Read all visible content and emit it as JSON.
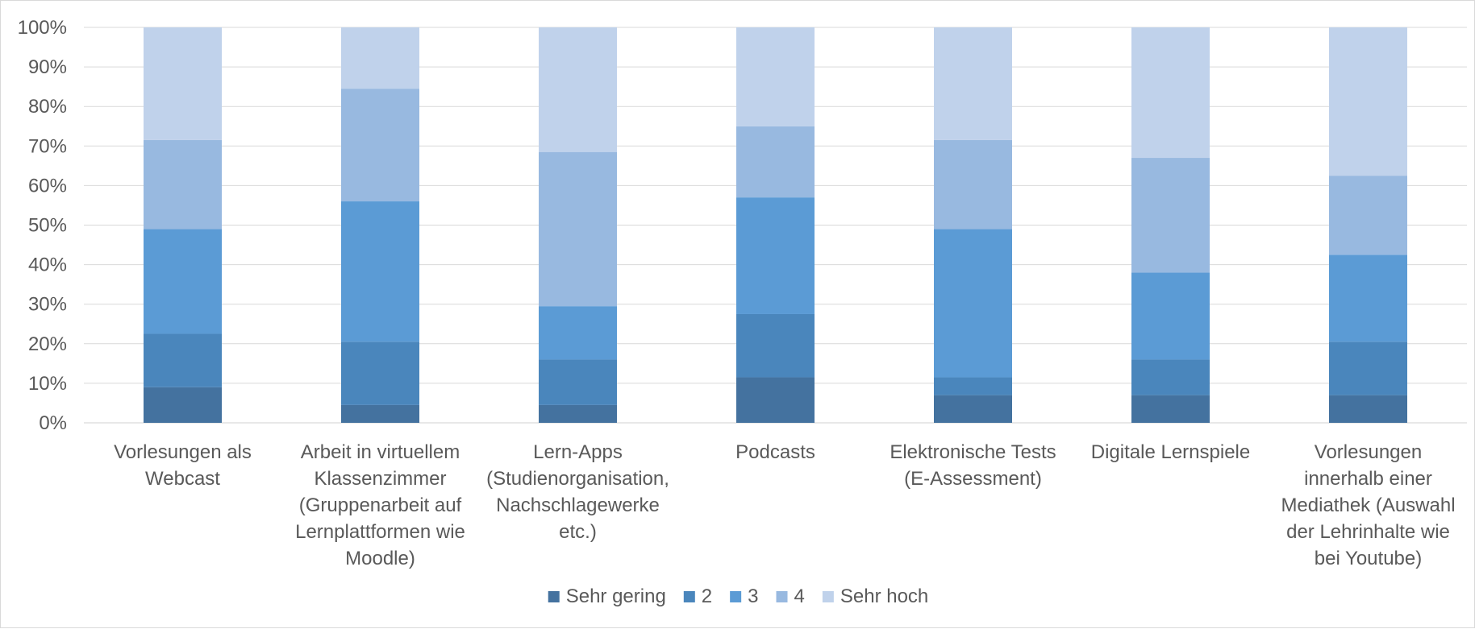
{
  "chart_data": {
    "type": "bar",
    "stacked": true,
    "percent": true,
    "title": "",
    "xlabel": "",
    "ylabel": "",
    "ylim": [
      0,
      100
    ],
    "yticks": [
      "0%",
      "10%",
      "20%",
      "30%",
      "40%",
      "50%",
      "60%",
      "70%",
      "80%",
      "90%",
      "100%"
    ],
    "grid": true,
    "legend_position": "bottom",
    "categories": [
      "Vorlesungen als Webcast",
      "Arbeit in virtuellem Klassenzimmer (Gruppenarbeit auf Lernplattformen wie Moodle)",
      "Lern-Apps (Studienorganisation, Nachschlagewerke etc.)",
      "Podcasts",
      "Elektronische Tests (E-Assessment)",
      "Digitale Lernspiele",
      "Vorlesungen innerhalb einer Mediathek (Auswahl der Lehrinhalte wie bei Youtube)"
    ],
    "category_lines": [
      [
        "Vorlesungen als",
        "Webcast"
      ],
      [
        "Arbeit in virtuellem",
        "Klassenzimmer",
        "(Gruppenarbeit auf",
        "Lernplattformen wie",
        "Moodle)"
      ],
      [
        "Lern-Apps",
        "(Studienorganisation,",
        "Nachschlagewerke",
        "etc.)"
      ],
      [
        "Podcasts"
      ],
      [
        "Elektronische Tests",
        "(E-Assessment)"
      ],
      [
        "Digitale Lernspiele"
      ],
      [
        "Vorlesungen",
        "innerhalb einer",
        "Mediathek (Auswahl",
        "der Lehrinhalte wie",
        "bei Youtube)"
      ]
    ],
    "series": [
      {
        "name": "Sehr gering",
        "color": "#44729f",
        "values": [
          9,
          4.5,
          4.5,
          11.5,
          7,
          7,
          7
        ]
      },
      {
        "name": "2",
        "color": "#4a86bc",
        "values": [
          13.5,
          16,
          11.5,
          16,
          4.5,
          9,
          13.5
        ]
      },
      {
        "name": "3",
        "color": "#5b9bd5",
        "values": [
          26.5,
          35.5,
          13.5,
          29.5,
          37.5,
          22,
          22
        ]
      },
      {
        "name": "4",
        "color": "#98b9e0",
        "values": [
          22.5,
          28.5,
          39,
          18,
          22.5,
          29,
          20
        ]
      },
      {
        "name": "Sehr hoch",
        "color": "#c0d2eb",
        "values": [
          28.5,
          15.5,
          31.5,
          25,
          28.5,
          33,
          37.5
        ]
      }
    ]
  }
}
